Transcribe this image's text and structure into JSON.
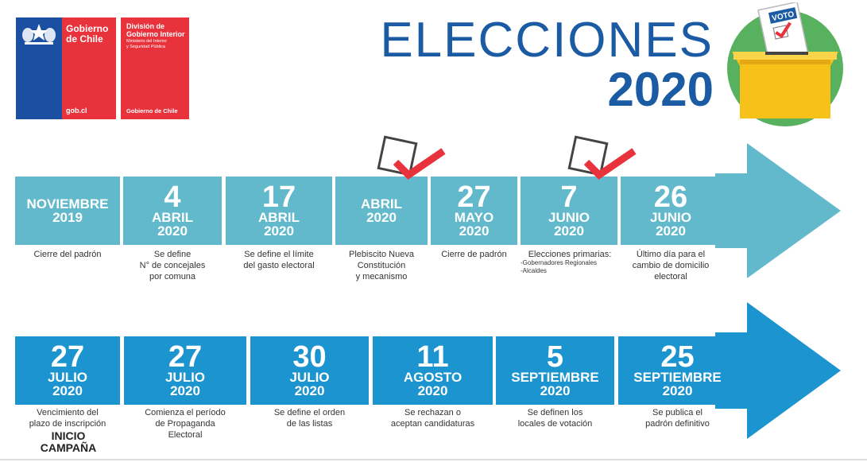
{
  "logos": {
    "gobierno": {
      "name": "Gobierno\nde Chile",
      "url_text": "gob.cl"
    },
    "division": {
      "title": "División de\nGobierno Interior",
      "subtitle": "Ministerio del Interior\ny Seguridad Pública",
      "footer": "Gobierno de Chile"
    }
  },
  "header": {
    "title_line1": "ELECCIONES",
    "title_line2": "2020",
    "ballot_label": "VOTO"
  },
  "colors": {
    "row1": "#62b9cc",
    "row2": "#1b94cf",
    "title": "#1a5ba3",
    "check": "#e8323c"
  },
  "row1": [
    {
      "day": "",
      "month": "NOVIEMBRE",
      "year": "2019",
      "desc": "Cierre del padrón"
    },
    {
      "day": "4",
      "month": "ABRIL",
      "year": "2020",
      "desc": "Se define\nN° de concejales\npor comuna"
    },
    {
      "day": "17",
      "month": "ABRIL",
      "year": "2020",
      "desc": "Se define el límite\ndel gasto electoral"
    },
    {
      "day": "",
      "month": "ABRIL",
      "year": "2020",
      "desc": "Plebiscito Nueva\nConstitución\ny mecanismo"
    },
    {
      "day": "27",
      "month": "MAYO",
      "year": "2020",
      "desc": "Cierre de padrón"
    },
    {
      "day": "7",
      "month": "JUNIO",
      "year": "2020",
      "desc": "Elecciones primarias:",
      "desc_small": "-Gobernadores Regionales\n-Alcaldes"
    },
    {
      "day": "26",
      "month": "JUNIO",
      "year": "2020",
      "desc": "Último día para el\ncambio de domicilio\nelectoral"
    }
  ],
  "row2": [
    {
      "day": "27",
      "month": "JULIO",
      "year": "2020",
      "desc": "Vencimiento del\nplazo de inscripción"
    },
    {
      "day": "27",
      "month": "JULIO",
      "year": "2020",
      "desc": "Comienza el período\nde Propaganda\nElectoral"
    },
    {
      "day": "30",
      "month": "JULIO",
      "year": "2020",
      "desc": "Se define el orden\nde las listas"
    },
    {
      "day": "11",
      "month": "AGOSTO",
      "year": "2020",
      "desc": "Se rechazan o\naceptan candidaturas"
    },
    {
      "day": "5",
      "month": "SEPTIEMBRE",
      "year": "2020",
      "desc": "Se definen los\nlocales de votación"
    },
    {
      "day": "25",
      "month": "SEPTIEMBRE",
      "year": "2020",
      "desc": "Se publica el\npadrón definitivo"
    }
  ],
  "campaign": "INICIO\nCAMPAÑA"
}
